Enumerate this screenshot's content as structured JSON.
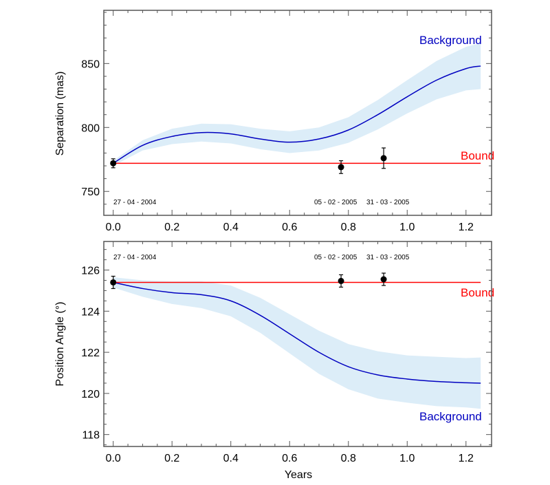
{
  "chart_data": [
    {
      "type": "line",
      "ylabel": "Separation (mas)",
      "xlabel": "",
      "xlim": [
        -0.032,
        1.287
      ],
      "ylim": [
        731.3,
        891.6
      ],
      "xticks": [
        "0.0",
        "0.2",
        "0.4",
        "0.6",
        "0.8",
        "1.0",
        "1.2"
      ],
      "yticks": [
        "750",
        "800",
        "850"
      ],
      "band_color": "#dcedf8",
      "series": [
        {
          "name": "Background",
          "color": "#0000c0",
          "label": "Background",
          "x": [
            0,
            0.1,
            0.2,
            0.3,
            0.4,
            0.5,
            0.6,
            0.7,
            0.8,
            0.9,
            1.0,
            1.1,
            1.2,
            1.25
          ],
          "y": [
            772,
            786,
            793,
            796,
            795,
            791,
            788.5,
            791,
            798,
            810,
            824,
            837,
            846,
            848
          ],
          "err": [
            2,
            4,
            6,
            7,
            7.5,
            8,
            8.5,
            9,
            10,
            11.5,
            13,
            15,
            17,
            18
          ]
        },
        {
          "name": "Bound",
          "color": "#ff0000",
          "label": "Bound",
          "x": [
            0,
            1.25
          ],
          "y": [
            772,
            772
          ]
        }
      ],
      "points": {
        "x": [
          0,
          0.775,
          0.92
        ],
        "y": [
          772,
          769,
          776
        ],
        "err": [
          3.5,
          5,
          8
        ],
        "dates": [
          "27 - 04 - 2004",
          "05 - 02 - 2005",
          "31 - 03 - 2005"
        ]
      }
    },
    {
      "type": "line",
      "ylabel": "Position Angle (°)",
      "xlabel": "Years",
      "xlim": [
        -0.032,
        1.287
      ],
      "ylim": [
        117.42,
        127.39
      ],
      "xticks": [
        "0.0",
        "0.2",
        "0.4",
        "0.6",
        "0.8",
        "1.0",
        "1.2"
      ],
      "yticks": [
        "118",
        "120",
        "122",
        "124",
        "126"
      ],
      "band_color": "#dcedf8",
      "series": [
        {
          "name": "Background",
          "color": "#0000c0",
          "label": "Background",
          "x": [
            0,
            0.1,
            0.2,
            0.3,
            0.4,
            0.5,
            0.6,
            0.7,
            0.8,
            0.9,
            1.0,
            1.1,
            1.2,
            1.25
          ],
          "y": [
            125.4,
            125.1,
            124.9,
            124.8,
            124.5,
            123.8,
            122.9,
            122.0,
            121.3,
            120.9,
            120.7,
            120.58,
            120.52,
            120.5
          ],
          "err": [
            0.25,
            0.4,
            0.55,
            0.65,
            0.75,
            0.85,
            0.95,
            1.05,
            1.1,
            1.15,
            1.15,
            1.2,
            1.2,
            1.25
          ]
        },
        {
          "name": "Bound",
          "color": "#ff0000",
          "label": "Bound",
          "x": [
            0,
            1.25
          ],
          "y": [
            125.4,
            125.4
          ]
        }
      ],
      "points": {
        "x": [
          0,
          0.775,
          0.92
        ],
        "y": [
          125.4,
          125.47,
          125.55
        ],
        "err": [
          0.3,
          0.3,
          0.3
        ],
        "dates": [
          "27 - 04 - 2004",
          "05 - 02 - 2005",
          "31 - 03 - 2005"
        ]
      }
    }
  ]
}
